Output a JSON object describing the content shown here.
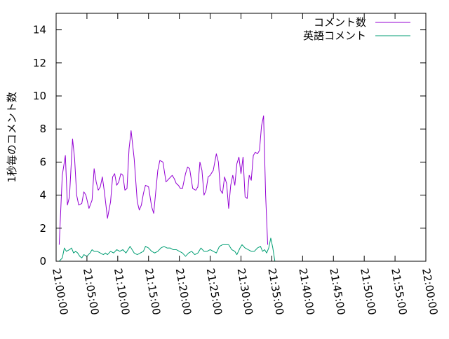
{
  "chart_data": {
    "type": "line",
    "title": "",
    "xlabel": "",
    "ylabel": "1秒毎のコメント数",
    "x_range_seconds": [
      0,
      3600
    ],
    "ylim": [
      0,
      15
    ],
    "y_ticks": [
      0,
      2,
      4,
      6,
      8,
      10,
      12,
      14
    ],
    "x_tick_labels": [
      "21:00:00",
      "21:05:00",
      "21:10:00",
      "21:15:00",
      "21:20:00",
      "21:25:00",
      "21:30:00",
      "21:35:00",
      "21:40:00",
      "21:45:00",
      "21:50:00",
      "21:55:00",
      "22:00:00"
    ],
    "grid": false,
    "legend_position": "top-right",
    "series": [
      {
        "name": "コメント数",
        "color": "#9400d3",
        "points": [
          [
            30,
            1.0
          ],
          [
            60,
            5.2
          ],
          [
            90,
            6.4
          ],
          [
            110,
            3.4
          ],
          [
            130,
            3.9
          ],
          [
            160,
            7.4
          ],
          [
            180,
            6.2
          ],
          [
            200,
            4.0
          ],
          [
            220,
            3.4
          ],
          [
            250,
            3.5
          ],
          [
            270,
            4.2
          ],
          [
            290,
            4.0
          ],
          [
            320,
            3.2
          ],
          [
            350,
            3.7
          ],
          [
            370,
            5.6
          ],
          [
            390,
            4.8
          ],
          [
            410,
            4.3
          ],
          [
            430,
            4.5
          ],
          [
            450,
            5.1
          ],
          [
            470,
            4.2
          ],
          [
            500,
            2.6
          ],
          [
            530,
            3.6
          ],
          [
            550,
            5.1
          ],
          [
            570,
            5.3
          ],
          [
            590,
            4.6
          ],
          [
            610,
            4.8
          ],
          [
            630,
            5.3
          ],
          [
            650,
            5.2
          ],
          [
            670,
            4.3
          ],
          [
            690,
            4.4
          ],
          [
            710,
            6.8
          ],
          [
            730,
            7.9
          ],
          [
            760,
            6.2
          ],
          [
            790,
            3.6
          ],
          [
            810,
            3.1
          ],
          [
            830,
            3.4
          ],
          [
            850,
            4.1
          ],
          [
            870,
            4.6
          ],
          [
            900,
            4.5
          ],
          [
            930,
            3.3
          ],
          [
            950,
            2.9
          ],
          [
            970,
            4.2
          ],
          [
            990,
            5.5
          ],
          [
            1010,
            6.1
          ],
          [
            1040,
            6.0
          ],
          [
            1070,
            4.8
          ],
          [
            1100,
            5.0
          ],
          [
            1130,
            5.2
          ],
          [
            1150,
            5.0
          ],
          [
            1170,
            4.7
          ],
          [
            1190,
            4.6
          ],
          [
            1210,
            4.4
          ],
          [
            1230,
            4.4
          ],
          [
            1260,
            5.3
          ],
          [
            1280,
            5.7
          ],
          [
            1300,
            5.6
          ],
          [
            1330,
            4.4
          ],
          [
            1360,
            4.3
          ],
          [
            1380,
            4.5
          ],
          [
            1400,
            6.0
          ],
          [
            1420,
            5.5
          ],
          [
            1440,
            4.0
          ],
          [
            1460,
            4.3
          ],
          [
            1480,
            5.1
          ],
          [
            1500,
            5.2
          ],
          [
            1530,
            5.5
          ],
          [
            1560,
            6.5
          ],
          [
            1580,
            6.0
          ],
          [
            1600,
            4.3
          ],
          [
            1620,
            4.1
          ],
          [
            1640,
            5.1
          ],
          [
            1660,
            4.7
          ],
          [
            1680,
            3.2
          ],
          [
            1700,
            4.6
          ],
          [
            1720,
            5.2
          ],
          [
            1740,
            4.6
          ],
          [
            1760,
            5.9
          ],
          [
            1780,
            6.3
          ],
          [
            1800,
            5.3
          ],
          [
            1820,
            6.3
          ],
          [
            1840,
            3.9
          ],
          [
            1860,
            3.8
          ],
          [
            1880,
            5.2
          ],
          [
            1900,
            4.9
          ],
          [
            1920,
            6.4
          ],
          [
            1940,
            6.6
          ],
          [
            1960,
            6.5
          ],
          [
            1980,
            6.7
          ],
          [
            2000,
            8.2
          ],
          [
            2020,
            8.8
          ],
          [
            2040,
            4.0
          ],
          [
            2060,
            1.0
          ]
        ]
      },
      {
        "name": "英語コメント",
        "color": "#009e73",
        "points": [
          [
            30,
            0.0
          ],
          [
            60,
            0.2
          ],
          [
            80,
            0.8
          ],
          [
            100,
            0.6
          ],
          [
            130,
            0.7
          ],
          [
            150,
            0.8
          ],
          [
            170,
            0.5
          ],
          [
            190,
            0.6
          ],
          [
            210,
            0.5
          ],
          [
            230,
            0.3
          ],
          [
            250,
            0.2
          ],
          [
            270,
            0.4
          ],
          [
            300,
            0.3
          ],
          [
            330,
            0.5
          ],
          [
            350,
            0.7
          ],
          [
            370,
            0.6
          ],
          [
            400,
            0.6
          ],
          [
            430,
            0.5
          ],
          [
            460,
            0.4
          ],
          [
            480,
            0.5
          ],
          [
            500,
            0.4
          ],
          [
            530,
            0.6
          ],
          [
            560,
            0.5
          ],
          [
            590,
            0.7
          ],
          [
            620,
            0.6
          ],
          [
            650,
            0.7
          ],
          [
            680,
            0.5
          ],
          [
            700,
            0.7
          ],
          [
            720,
            0.9
          ],
          [
            740,
            0.7
          ],
          [
            760,
            0.5
          ],
          [
            790,
            0.4
          ],
          [
            820,
            0.5
          ],
          [
            850,
            0.6
          ],
          [
            870,
            0.9
          ],
          [
            900,
            0.8
          ],
          [
            930,
            0.6
          ],
          [
            960,
            0.5
          ],
          [
            990,
            0.6
          ],
          [
            1020,
            0.8
          ],
          [
            1050,
            0.9
          ],
          [
            1080,
            0.8
          ],
          [
            1110,
            0.8
          ],
          [
            1140,
            0.7
          ],
          [
            1170,
            0.7
          ],
          [
            1200,
            0.6
          ],
          [
            1230,
            0.5
          ],
          [
            1260,
            0.3
          ],
          [
            1290,
            0.5
          ],
          [
            1320,
            0.6
          ],
          [
            1350,
            0.4
          ],
          [
            1380,
            0.5
          ],
          [
            1410,
            0.8
          ],
          [
            1440,
            0.6
          ],
          [
            1470,
            0.6
          ],
          [
            1500,
            0.7
          ],
          [
            1530,
            0.6
          ],
          [
            1560,
            0.5
          ],
          [
            1590,
            0.9
          ],
          [
            1620,
            1.0
          ],
          [
            1650,
            1.0
          ],
          [
            1680,
            1.0
          ],
          [
            1710,
            0.7
          ],
          [
            1740,
            0.6
          ],
          [
            1760,
            0.4
          ],
          [
            1790,
            0.8
          ],
          [
            1810,
            1.0
          ],
          [
            1840,
            0.8
          ],
          [
            1870,
            0.7
          ],
          [
            1900,
            0.6
          ],
          [
            1930,
            0.6
          ],
          [
            1960,
            0.8
          ],
          [
            1990,
            0.9
          ],
          [
            2010,
            0.6
          ],
          [
            2030,
            0.7
          ],
          [
            2050,
            0.5
          ],
          [
            2070,
            0.8
          ],
          [
            2090,
            1.4
          ],
          [
            2110,
            0.8
          ],
          [
            2130,
            0.0
          ]
        ]
      }
    ]
  }
}
